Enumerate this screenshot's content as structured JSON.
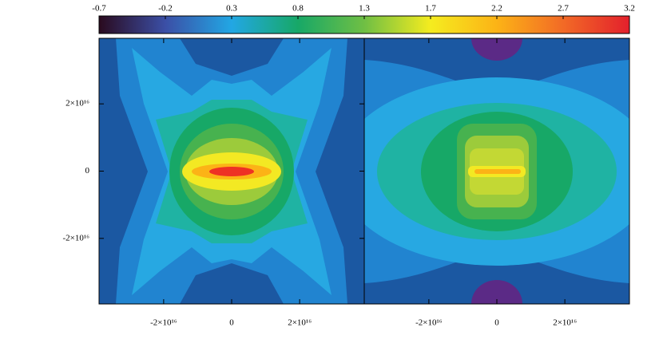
{
  "chart_data": [
    {
      "type": "colorbar",
      "xlim": [
        -0.7,
        3.2
      ],
      "xticks": [
        -0.7,
        {
          "value": -0.2125,
          "label": "-0.2"
        },
        {
          "value": 0.275,
          "label": "0.3"
        },
        {
          "value": 0.7625,
          "label": "0.8"
        },
        {
          "value": 1.25,
          "label": "1.3"
        },
        {
          "value": 1.7375,
          "label": "1.7"
        },
        {
          "value": 2.225,
          "label": "2.2"
        },
        {
          "value": 2.7125,
          "label": "2.7"
        },
        3.2
      ],
      "colors": [
        "#2a0a1e",
        "#3b4fa6",
        "#22a7e4",
        "#17a867",
        "#6fbf44",
        "#f5ec1f",
        "#fcb316",
        "#f26a26",
        "#e3202c"
      ]
    },
    {
      "type": "contour",
      "xlim": [
        -3.9e+16,
        3.9e+16
      ],
      "ylim": [
        -3.95e+16,
        3.95e+16
      ],
      "xticks": [
        {
          "value": -2e+16,
          "label": "-2×10¹⁶"
        },
        0,
        {
          "value": 2e+16,
          "label": "2×10¹⁶"
        }
      ],
      "yticks": [
        {
          "value": -2e+16,
          "label": "-2×10¹⁶"
        },
        0,
        {
          "value": 2e+16,
          "label": "2×10¹⁶"
        }
      ]
    },
    {
      "type": "contour",
      "xlim": [
        -3.9e+16,
        3.9e+16
      ],
      "ylim": [
        -3.95e+16,
        3.95e+16
      ],
      "xticks": [
        {
          "value": -2e+16,
          "label": "-2×10¹⁶"
        },
        0,
        {
          "value": 2e+16,
          "label": "2×10¹⁶"
        }
      ]
    }
  ]
}
